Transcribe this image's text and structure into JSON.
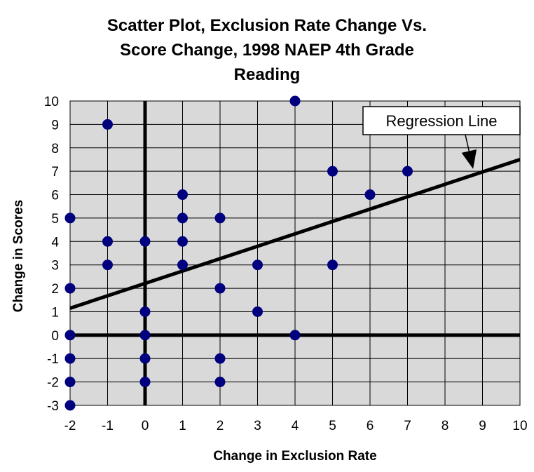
{
  "chart_data": {
    "type": "scatter",
    "title_lines": [
      "Scatter Plot, Exclusion Rate Change Vs.",
      "Score Change, 1998 NAEP 4th Grade",
      "Reading"
    ],
    "xlabel": "Change in Exclusion Rate",
    "ylabel": "Change in Scores",
    "xlim": [
      -2,
      10
    ],
    "ylim": [
      -3,
      10
    ],
    "xticks": [
      "-2",
      "-1",
      "0",
      "1",
      "2",
      "3",
      "4",
      "5",
      "6",
      "7",
      "8",
      "9",
      "10"
    ],
    "yticks": [
      "10",
      "9",
      "8",
      "7",
      "6",
      "5",
      "4",
      "3",
      "2",
      "1",
      "0",
      "-1",
      "-2",
      "-3"
    ],
    "grid": true,
    "plot_background": "#d9d9d9",
    "point_color": "#00007f",
    "points": [
      {
        "x": -2,
        "y": 5
      },
      {
        "x": -2,
        "y": 2
      },
      {
        "x": -2,
        "y": 0
      },
      {
        "x": -2,
        "y": -1
      },
      {
        "x": -2,
        "y": -2
      },
      {
        "x": -2,
        "y": -3
      },
      {
        "x": -1,
        "y": 9
      },
      {
        "x": -1,
        "y": 4
      },
      {
        "x": -1,
        "y": 3
      },
      {
        "x": 0,
        "y": 4
      },
      {
        "x": 0,
        "y": 1
      },
      {
        "x": 0,
        "y": 0
      },
      {
        "x": 0,
        "y": -1
      },
      {
        "x": 0,
        "y": -2
      },
      {
        "x": 1,
        "y": 6
      },
      {
        "x": 1,
        "y": 5
      },
      {
        "x": 1,
        "y": 4
      },
      {
        "x": 1,
        "y": 3
      },
      {
        "x": 2,
        "y": 5
      },
      {
        "x": 2,
        "y": 2
      },
      {
        "x": 2,
        "y": -1
      },
      {
        "x": 2,
        "y": -2
      },
      {
        "x": 3,
        "y": 3
      },
      {
        "x": 3,
        "y": 1
      },
      {
        "x": 4,
        "y": 10
      },
      {
        "x": 4,
        "y": 0
      },
      {
        "x": 5,
        "y": 7
      },
      {
        "x": 5,
        "y": 3
      },
      {
        "x": 6,
        "y": 6
      },
      {
        "x": 7,
        "y": 7
      }
    ],
    "regression_line": {
      "x": [
        -2,
        10
      ],
      "y": [
        1.15,
        7.5
      ]
    },
    "annotation": {
      "text": "Regression Line",
      "arrow_to": {
        "x": 8.75,
        "y": 7.1
      }
    }
  }
}
